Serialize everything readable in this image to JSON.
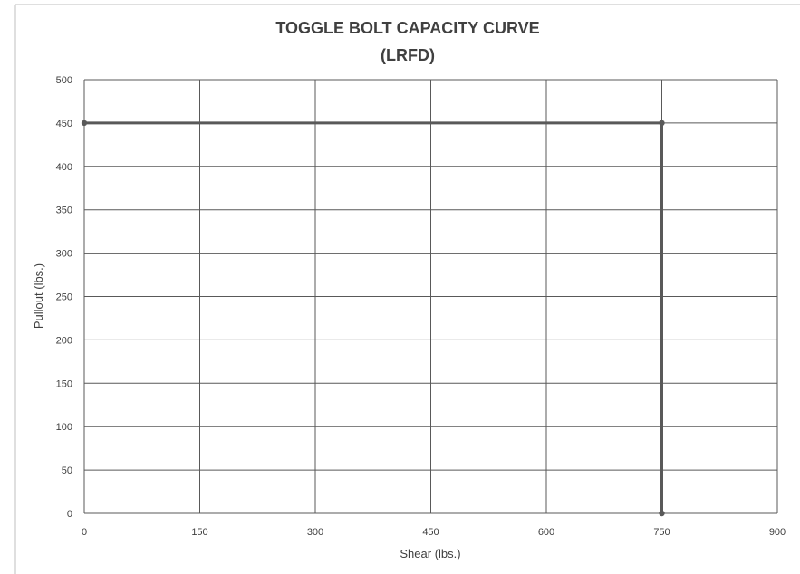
{
  "chart_data": {
    "type": "line",
    "title": "TOGGLE BOLT CAPACITY CURVE",
    "subtitle": "(LRFD)",
    "xlabel": "Shear (lbs.)",
    "ylabel": "Pullout (lbs.)",
    "xlim": [
      0,
      900
    ],
    "ylim": [
      0,
      500
    ],
    "xticks": [
      "0",
      "150",
      "300",
      "450",
      "600",
      "750",
      "900"
    ],
    "yticks": [
      "0",
      "50",
      "100",
      "150",
      "200",
      "250",
      "300",
      "350",
      "400",
      "450",
      "500"
    ],
    "grid": true,
    "series": [
      {
        "x": [
          0,
          750,
          750
        ],
        "y": [
          450,
          450,
          0
        ],
        "color": "#595959",
        "marker": "circle"
      }
    ]
  }
}
